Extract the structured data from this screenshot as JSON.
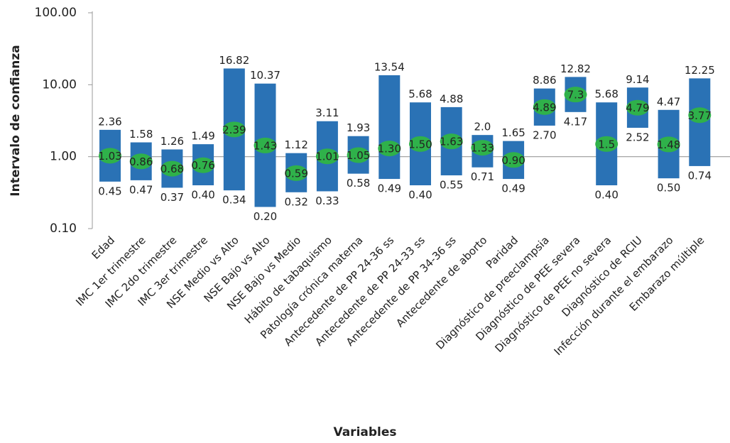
{
  "chart_data": {
    "type": "interval",
    "y_label": "Intervalo de confianza",
    "x_label": "Variables",
    "log_scale": true,
    "ylim": [
      0.1,
      100
    ],
    "yticks": [
      {
        "value": 0.1,
        "label": "0.10"
      },
      {
        "value": 1,
        "label": "1.00"
      },
      {
        "value": 10,
        "label": "10.00"
      },
      {
        "value": 100,
        "label": "100.00"
      }
    ],
    "reference_line": 1,
    "bar_color": "#2a72b5",
    "estimate_color": "#2fb14a",
    "categories": [
      "Edad",
      "IMC 1er trimestre",
      "IMC 2do trimestre",
      "IMC 3er trimestre",
      "NSE Medio vs Alto",
      "NSE Bajo vs Alto",
      "NSE Bajo vs Medio",
      "Hábito de tabaquismo",
      "Patología crónica materna",
      "Antecedente de PP 24-36 ss",
      "Antecedente de PP 24-33 ss",
      "Antecedente de PP 34-36 ss",
      "Antecedente de aborto",
      "Paridad",
      "Diagnóstico de preeclampsia",
      "Diagnóstico de PEE severa",
      "Diagnóstico de PEE no severa",
      "Diagnóstico de RCIU",
      "Infección durante el embarazo",
      "Embarazo múltiple"
    ],
    "low": {
      "values": [
        0.45,
        0.47,
        0.37,
        0.4,
        0.34,
        0.2,
        0.32,
        0.33,
        0.58,
        0.49,
        0.4,
        0.55,
        0.71,
        0.49,
        2.7,
        4.17,
        0.4,
        2.52,
        0.5,
        0.74
      ],
      "value_labels": [
        "0.45",
        "0.47",
        "0.37",
        "0.40",
        "0.34",
        "0.20",
        "0.32",
        "0.33",
        "0.58",
        "0.49",
        "0.40",
        "0.55",
        "0.71",
        "0.49",
        "2.70",
        "4.17",
        "0.40",
        "2.52",
        "0.50",
        "0.74"
      ]
    },
    "high": {
      "values": [
        2.36,
        1.58,
        1.26,
        1.49,
        16.82,
        10.37,
        1.12,
        3.11,
        1.93,
        13.54,
        5.68,
        4.88,
        2.0,
        1.65,
        8.86,
        12.82,
        5.68,
        9.14,
        4.47,
        12.25
      ],
      "value_labels": [
        "2.36",
        "1.58",
        "1.26",
        "1.49",
        "16.82",
        "10.37",
        "1.12",
        "3.11",
        "1.93",
        "13.54",
        "5.68",
        "4.88",
        "2.0",
        "1.65",
        "8.86",
        "12.82",
        "5.68",
        "9.14",
        "4.47",
        "12.25"
      ]
    },
    "estimate": {
      "values": [
        1.03,
        0.86,
        0.68,
        0.76,
        2.39,
        1.43,
        0.59,
        1.01,
        1.05,
        1.3,
        1.5,
        1.63,
        1.33,
        0.9,
        4.89,
        7.3,
        1.5,
        4.79,
        1.48,
        3.77
      ],
      "value_labels": [
        "1.03",
        "0.86",
        "0.68",
        "0.76",
        "2.39",
        "1.43",
        "0.59",
        "1.01",
        "1.05",
        "1.30",
        "1.50",
        "1.63",
        "1.33",
        "0.90",
        "4.89",
        "7.3",
        "1.5",
        "4.79",
        "1.48",
        "3.77"
      ]
    }
  }
}
